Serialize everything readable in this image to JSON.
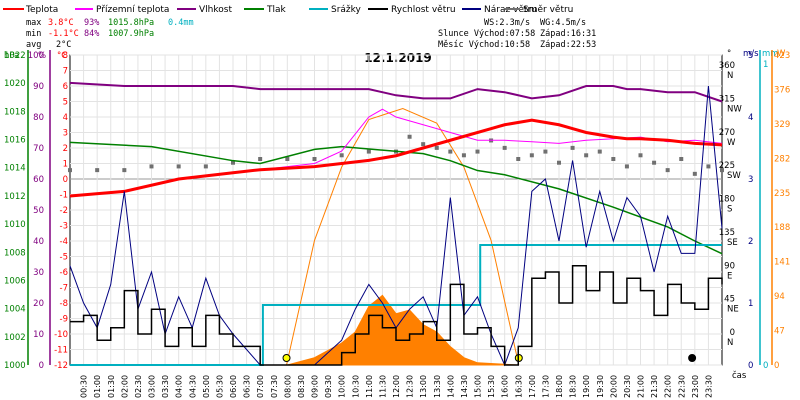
{
  "chart_data": {
    "type": "line",
    "title": "12.1.2019",
    "xlabel": "čas",
    "legend": [
      {
        "name": "Teplota",
        "color": "#ff0000"
      },
      {
        "name": "Přízemní teplota",
        "color": "#ff00ff"
      },
      {
        "name": "Vlhkost",
        "color": "#800080"
      },
      {
        "name": "Tlak",
        "color": "#008000"
      },
      {
        "name": "Srážky",
        "color": "#00b0c0"
      },
      {
        "name": "Rychlost větru",
        "color": "#000000"
      },
      {
        "name": "Náraz větru",
        "color": "#000080"
      },
      {
        "name": "Směr větru",
        "color": "#707070"
      }
    ],
    "stats": {
      "max": {
        "label": "max",
        "temp": "3.8°C",
        "hum": "93%",
        "press": "1015.8hPa",
        "rain": "0.4mm"
      },
      "min": {
        "label": "min",
        "temp": "-1.1°C",
        "hum": "84%",
        "press": "1007.9hPa"
      },
      "avg": {
        "label": "avg",
        "temp": "2°C"
      }
    },
    "info": {
      "ws": "WS:2.3m/s",
      "wg": "WG:4.5m/s",
      "sun": "Slunce Východ:07:58",
      "sunset": "Západ:16:31",
      "moon": "Měsíc Východ:10:58",
      "moonset": "Západ:22:53"
    },
    "axes": {
      "hpa_label": "hPa",
      "hpa_ticks": [
        "1000",
        "1002",
        "1004",
        "1006",
        "1008",
        "1010",
        "1012",
        "1014",
        "1016",
        "1018",
        "1020",
        "1022"
      ],
      "pct_label": "%",
      "pct_ticks": [
        "0",
        "10",
        "20",
        "30",
        "40",
        "50",
        "60",
        "70",
        "80",
        "90",
        "100"
      ],
      "c_label": "°C",
      "c_ticks": [
        "-12",
        "-11",
        "-10",
        "-9",
        "-8",
        "-7",
        "-6",
        "-5",
        "-4",
        "-3",
        "-2",
        "-1",
        "0",
        "1",
        "2",
        "3",
        "4",
        "5",
        "6",
        "7",
        "8"
      ],
      "dir_label": "°",
      "dir_ticks": [
        {
          "deg": "0",
          "name": "N"
        },
        {
          "deg": "45",
          "name": "NE"
        },
        {
          "deg": "90",
          "name": "E"
        },
        {
          "deg": "135",
          "name": "SE"
        },
        {
          "deg": "180",
          "name": "S"
        },
        {
          "deg": "225",
          "name": "SW"
        },
        {
          "deg": "270",
          "name": "W"
        },
        {
          "deg": "315",
          "name": "NW"
        },
        {
          "deg": "360",
          "name": "N"
        }
      ],
      "ms_label": "m/s",
      "ms_ticks": [
        "0",
        "1",
        "2",
        "3",
        "4",
        "5"
      ],
      "mm_label": "mm",
      "mm_ticks": [
        "0",
        "1"
      ],
      "w_label": "W",
      "w_ticks": [
        "0",
        "47",
        "94",
        "141",
        "188",
        "235",
        "282",
        "329",
        "376",
        "423"
      ],
      "x_ticks": [
        "00:30",
        "01:00",
        "01:30",
        "02:00",
        "02:30",
        "03:00",
        "03:30",
        "04:00",
        "04:30",
        "05:00",
        "05:30",
        "06:00",
        "06:30",
        "07:00",
        "07:30",
        "08:00",
        "08:30",
        "09:00",
        "09:30",
        "10:00",
        "10:30",
        "11:00",
        "11:30",
        "12:00",
        "12:30",
        "13:00",
        "13:30",
        "14:00",
        "14:30",
        "15:00",
        "15:30",
        "16:00",
        "16:30",
        "17:00",
        "17:30",
        "18:00",
        "18:30",
        "19:00",
        "19:30",
        "20:00",
        "20:30",
        "21:00",
        "21:30",
        "22:00",
        "22:30",
        "23:00",
        "23:30"
      ]
    },
    "series": [
      {
        "name": "Teplota",
        "unit": "°C",
        "x": [
          0,
          2,
          4,
          6,
          7,
          9,
          11,
          12,
          14,
          16,
          17,
          18,
          19,
          20,
          20.5,
          21,
          22,
          23,
          24
        ],
        "values": [
          -1.1,
          -0.8,
          0,
          0.4,
          0.6,
          0.8,
          1.2,
          1.5,
          2.5,
          3.5,
          3.8,
          3.5,
          3,
          2.7,
          2.6,
          2.6,
          2.5,
          2.3,
          2.2
        ]
      },
      {
        "name": "Přízemní teplota",
        "unit": "°C",
        "x": [
          7,
          9,
          10,
          11,
          11.5,
          12,
          13,
          14,
          15,
          16,
          17,
          18,
          19,
          20,
          21,
          22,
          23,
          24
        ],
        "values": [
          0.6,
          1,
          1.8,
          4,
          4.5,
          4,
          3.5,
          3,
          2.5,
          2.5,
          2.4,
          2.3,
          2.5,
          2.6,
          2.7,
          2.4,
          2.5,
          2.3
        ]
      },
      {
        "name": "Vlhkost",
        "unit": "%",
        "x": [
          0,
          2,
          3,
          6,
          7,
          10,
          11,
          12,
          13,
          14,
          15,
          16,
          17,
          18,
          19,
          20,
          20.5,
          21,
          22,
          23,
          24
        ],
        "values": [
          91,
          90,
          90,
          90,
          89,
          89,
          89,
          87,
          86,
          86,
          89,
          88,
          86,
          87,
          90,
          90,
          89,
          89,
          88,
          88,
          85
        ]
      },
      {
        "name": "Tlak",
        "unit": "hPa",
        "x": [
          0,
          3,
          6,
          7,
          9,
          10,
          13,
          14,
          15,
          16,
          18,
          20,
          22,
          23,
          24
        ],
        "values": [
          1015.8,
          1015.5,
          1014.5,
          1014.3,
          1015.3,
          1015.5,
          1015.0,
          1014.5,
          1013.8,
          1013.5,
          1012.5,
          1011.2,
          1009.8,
          1008.8,
          1007.9
        ]
      },
      {
        "name": "Srážky",
        "unit": "mm",
        "x": [
          0,
          7,
          7.1,
          15,
          15.1,
          24
        ],
        "values": [
          0,
          0,
          0.2,
          0.2,
          0.4,
          0.4
        ]
      },
      {
        "name": "Rychlost větru",
        "unit": "m/s",
        "x": [
          0,
          0.5,
          1,
          1.5,
          2,
          2.5,
          3,
          3.5,
          4,
          4.5,
          5,
          5.5,
          6,
          7,
          8,
          9,
          10,
          10.5,
          11,
          11.5,
          12,
          12.5,
          13,
          13.5,
          14,
          14.5,
          15,
          15.5,
          16,
          16.5,
          17,
          17.5,
          18,
          18.5,
          19,
          19.5,
          20,
          20.5,
          21,
          21.5,
          22,
          22.5,
          23,
          23.5,
          24
        ],
        "values": [
          0.7,
          0.8,
          0.4,
          0.6,
          1.2,
          0.5,
          0.9,
          0.3,
          0.6,
          0.3,
          0.8,
          0.5,
          0.3,
          0,
          0,
          0,
          0.2,
          0.5,
          0.8,
          0.6,
          0.4,
          0.5,
          0.7,
          0.4,
          1.3,
          0.5,
          0.6,
          0.3,
          0,
          0.3,
          1.4,
          1.5,
          1,
          1.6,
          1.2,
          1.5,
          1,
          1.4,
          1.2,
          0.8,
          1.3,
          1,
          0.9,
          1.4,
          1.3
        ]
      },
      {
        "name": "Náraz větru",
        "unit": "m/s",
        "x": [
          0,
          0.5,
          1,
          1.5,
          2,
          2.5,
          3,
          3.5,
          4,
          4.5,
          5,
          5.5,
          6,
          7,
          8,
          9,
          10,
          10.5,
          11,
          11.5,
          12,
          12.5,
          13,
          13.5,
          14,
          14.5,
          15,
          15.5,
          16,
          16.5,
          17,
          17.5,
          18,
          18.5,
          19,
          19.5,
          20,
          20.5,
          21,
          21.5,
          22,
          22.5,
          23,
          23.5,
          24
        ],
        "values": [
          1.6,
          1,
          0.6,
          1.3,
          2.8,
          0.9,
          1.5,
          0.5,
          1.1,
          0.6,
          1.4,
          0.8,
          0.5,
          0,
          0,
          0,
          0.4,
          0.9,
          1.3,
          1,
          0.6,
          0.9,
          1.1,
          0.6,
          2.7,
          0.8,
          1.1,
          0.5,
          0,
          0.6,
          2.8,
          3,
          2,
          3.3,
          1.9,
          2.8,
          2,
          2.7,
          2.4,
          1.5,
          2.4,
          1.8,
          1.8,
          4.5,
          2.2
        ]
      },
      {
        "name": "Směr větru",
        "unit": "°",
        "x": [
          0,
          1,
          2,
          3,
          4,
          5,
          6,
          7,
          8,
          9,
          10,
          11,
          12,
          12.5,
          13,
          13.5,
          14,
          14.5,
          15,
          15.5,
          16,
          16.5,
          17,
          17.5,
          18,
          18.5,
          19,
          19.5,
          20,
          20.5,
          21,
          21.5,
          22,
          22.5,
          23,
          23.5,
          24
        ],
        "values": [
          225,
          225,
          225,
          230,
          230,
          230,
          235,
          240,
          240,
          240,
          245,
          250,
          250,
          270,
          260,
          255,
          250,
          245,
          250,
          265,
          255,
          240,
          245,
          250,
          235,
          255,
          245,
          250,
          240,
          230,
          245,
          235,
          225,
          240,
          220,
          230,
          225
        ]
      },
      {
        "name": "Solar",
        "unit": "W",
        "x": [
          8,
          9,
          10,
          10.5,
          11,
          11.5,
          12,
          12.5,
          13,
          13.5,
          14,
          14.5,
          15,
          16.5
        ],
        "values": [
          0,
          10,
          30,
          45,
          80,
          95,
          70,
          75,
          55,
          45,
          25,
          10,
          3,
          0
        ]
      },
      {
        "name": "Sun elevation",
        "unit": "W",
        "x": [
          7.97,
          9,
          10,
          11,
          12.25,
          13.5,
          14.5,
          15.5,
          16.52
        ],
        "values": [
          0,
          170,
          270,
          335,
          350,
          330,
          270,
          170,
          0
        ]
      }
    ]
  }
}
